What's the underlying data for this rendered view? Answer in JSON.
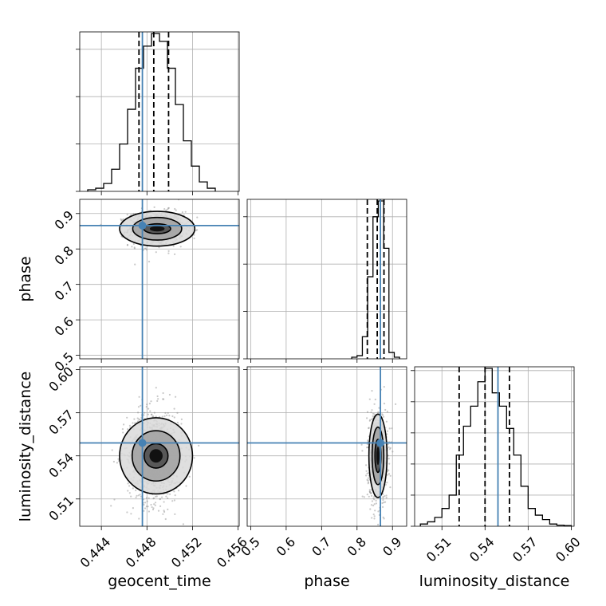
{
  "chart_data": {
    "type": "corner",
    "parameters": [
      "geocent_time",
      "phase",
      "luminosity_distance"
    ],
    "truths": {
      "geocent_time": 0.4476,
      "phase": 0.866,
      "luminosity_distance": 0.549
    },
    "quantiles": {
      "geocent_time": [
        0.4473,
        0.4486,
        0.4499
      ],
      "phase": [
        0.829,
        0.857,
        0.876
      ],
      "luminosity_distance": [
        0.522,
        0.54,
        0.557
      ]
    },
    "axes": {
      "geocent_time": {
        "range": [
          0.4421,
          0.4561
        ],
        "ticks": [
          0.444,
          0.448,
          0.452,
          0.456
        ],
        "tick_labels": [
          "0.444",
          "0.448",
          "0.452",
          "0.456"
        ]
      },
      "phase": {
        "range": [
          0.49,
          0.94
        ],
        "ticks": [
          0.5,
          0.6,
          0.7,
          0.8,
          0.9
        ],
        "tick_labels": [
          "0.5",
          "0.6",
          "0.7",
          "0.8",
          "0.9"
        ]
      },
      "luminosity_distance": {
        "range": [
          0.491,
          0.602
        ],
        "ticks": [
          0.51,
          0.54,
          0.57,
          0.6
        ],
        "tick_labels": [
          "0.51",
          "0.54",
          "0.57",
          "0.60"
        ]
      }
    },
    "histograms": {
      "geocent_time": {
        "edges": [
          0.4428,
          0.4435,
          0.4442,
          0.4449,
          0.4456,
          0.4463,
          0.447,
          0.4477,
          0.4484,
          0.4491,
          0.4498,
          0.4505,
          0.4512,
          0.4519,
          0.4526,
          0.4533,
          0.454
        ],
        "counts": [
          1,
          2,
          5,
          14,
          30,
          52,
          78,
          92,
          100,
          95,
          78,
          55,
          32,
          16,
          6,
          2
        ]
      },
      "phase": {
        "edges": [
          0.785,
          0.8,
          0.815,
          0.83,
          0.845,
          0.86,
          0.875,
          0.89,
          0.905,
          0.92
        ],
        "counts": [
          1,
          2,
          14,
          52,
          90,
          100,
          70,
          4,
          1
        ]
      },
      "luminosity_distance": {
        "edges": [
          0.495,
          0.5,
          0.505,
          0.51,
          0.515,
          0.52,
          0.525,
          0.53,
          0.535,
          0.54,
          0.545,
          0.55,
          0.555,
          0.56,
          0.565,
          0.57,
          0.575,
          0.58,
          0.585,
          0.59,
          0.595,
          0.6
        ],
        "counts": [
          1,
          2,
          4,
          8,
          14,
          32,
          45,
          54,
          65,
          71,
          60,
          54,
          44,
          32,
          18,
          8,
          5,
          3,
          1,
          0.5,
          0.3
        ]
      }
    },
    "scatter": {
      "geocent_time_vs_phase": {
        "center": [
          0.4488,
          0.857
        ],
        "sigma": [
          0.0012,
          0.024
        ],
        "n": 900
      },
      "geocent_time_vs_luminosity_distance": {
        "center": [
          0.4487,
          0.54
        ],
        "sigma": [
          0.0012,
          0.0165
        ],
        "n": 900
      },
      "phase_vs_luminosity_distance": {
        "center": [
          0.858,
          0.54
        ],
        "sigma": [
          0.014,
          0.0165
        ],
        "n": 700
      }
    },
    "contours": {
      "geocent_time_vs_phase": [
        {
          "cx": 0.4489,
          "cy": 0.857,
          "rx": 0.00118,
          "ry": 0.014
        },
        {
          "cx": 0.4489,
          "cy": 0.857,
          "rx": 0.00215,
          "ry": 0.032
        },
        {
          "cx": 0.4489,
          "cy": 0.857,
          "rx": 0.0033,
          "ry": 0.049
        }
      ],
      "geocent_time_vs_luminosity_distance": [
        {
          "cx": 0.4488,
          "cy": 0.54,
          "rx": 0.00105,
          "ry": 0.0085
        },
        {
          "cx": 0.4488,
          "cy": 0.54,
          "rx": 0.0021,
          "ry": 0.0175
        },
        {
          "cx": 0.4488,
          "cy": 0.54,
          "rx": 0.0032,
          "ry": 0.0265
        }
      ],
      "phase_vs_luminosity_distance": [
        {
          "cx": 0.859,
          "cy": 0.54,
          "rx": 0.0085,
          "ry": 0.0115
        },
        {
          "cx": 0.859,
          "cy": 0.54,
          "rx": 0.0165,
          "ry": 0.02
        },
        {
          "cx": 0.859,
          "cy": 0.54,
          "rx": 0.0255,
          "ry": 0.029
        }
      ]
    },
    "colors": {
      "truth": "#4682b4",
      "lines": "#000000",
      "grid": "#b0b0b0"
    },
    "grid": true
  }
}
